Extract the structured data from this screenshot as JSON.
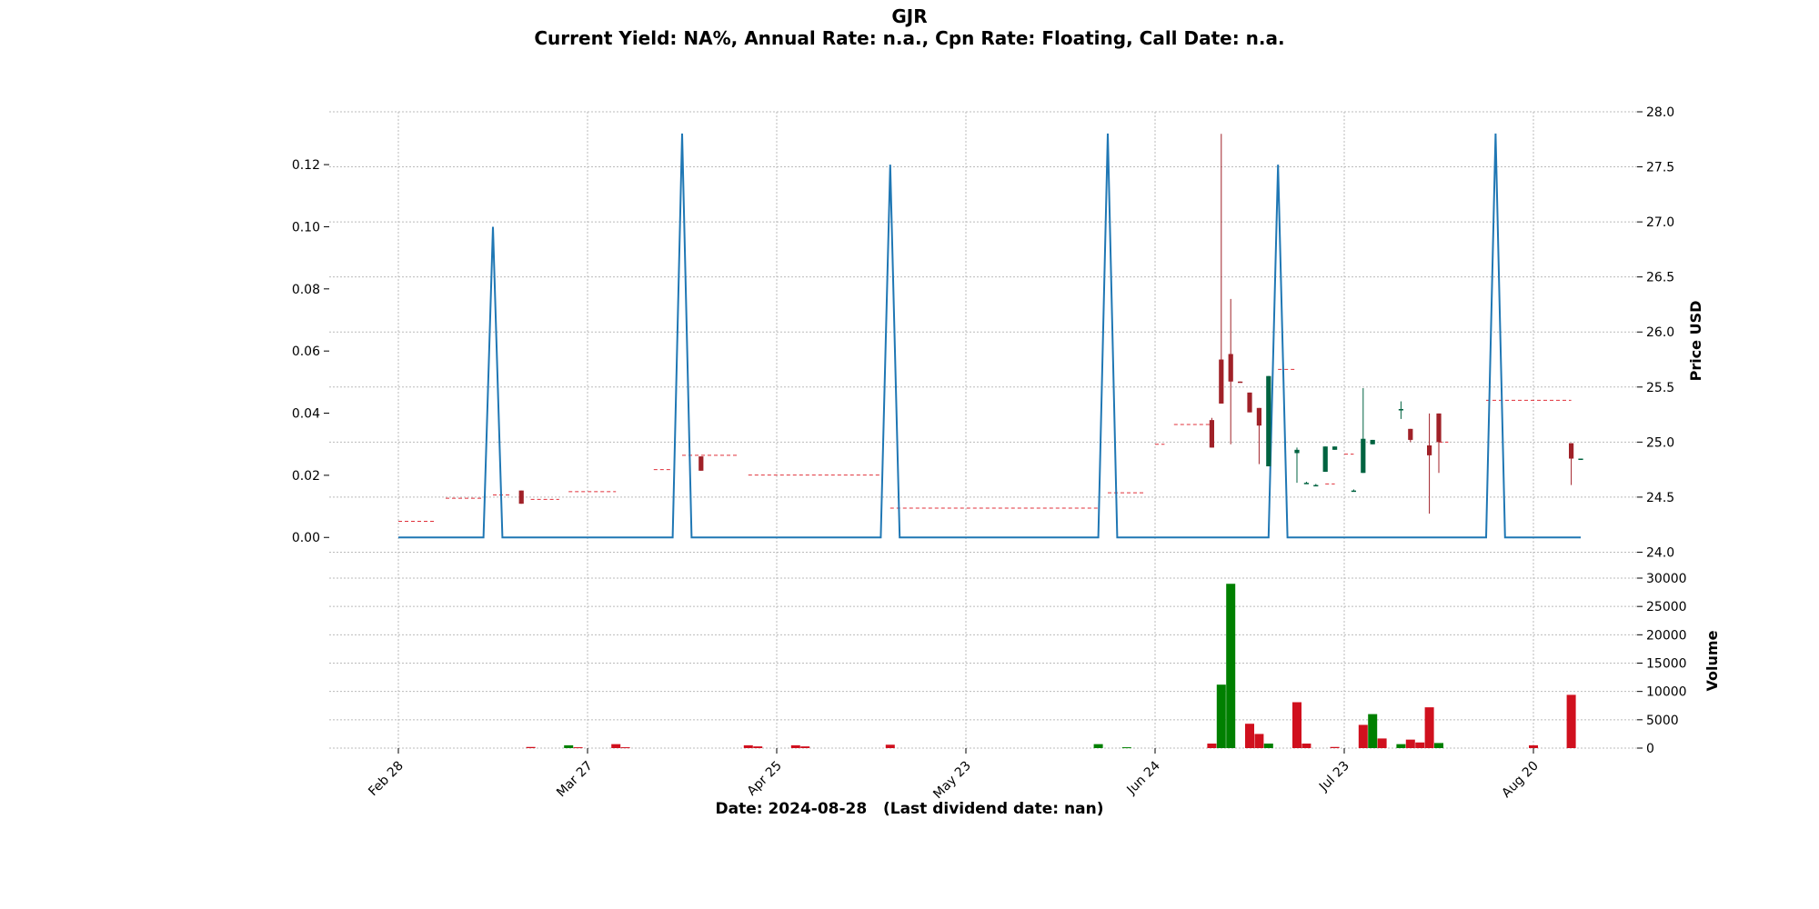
{
  "title": "GJR",
  "subtitle": "Current Yield: NA%, Annual Rate: n.a., Cpn Rate: Floating, Call Date: n.a.",
  "xlabel": "Date: 2024-08-28   (Last dividend date: nan)",
  "colors": {
    "line": "#1f77b4",
    "up": "#006340",
    "down": "#a02128",
    "dash": "#e0303a",
    "vol_up": "#008000",
    "vol_down": "#d0101e",
    "grid": "#bbbbbb"
  },
  "chart_data": {
    "type": "candlestick_with_volume",
    "x_ticks": [
      "Feb 28",
      "Mar 27",
      "Apr 25",
      "May 23",
      "Jun 24",
      "Jul 23",
      "Aug 20"
    ],
    "x_tick_index": [
      0,
      20,
      40,
      60,
      80,
      100,
      120
    ],
    "left_axis": {
      "ylim": [
        -0.009,
        0.137
      ],
      "ticks": [
        0.0,
        0.02,
        0.04,
        0.06,
        0.08,
        0.1,
        0.12
      ],
      "tick_labels": [
        "0.00",
        "0.02",
        "0.04",
        "0.06",
        "0.08",
        "0.10",
        "0.12"
      ]
    },
    "right_axis": {
      "label": "Price USD",
      "ylim": [
        23.88,
        28.0
      ],
      "ticks": [
        24.0,
        24.5,
        25.0,
        25.5,
        26.0,
        26.5,
        27.0,
        27.5,
        28.0
      ],
      "tick_labels": [
        "24.0",
        "24.5",
        "25.0",
        "25.5",
        "26.0",
        "26.5",
        "27.0",
        "27.5",
        "28.0"
      ]
    },
    "volume_axis": {
      "label": "Volume",
      "ylim": [
        0,
        30000
      ],
      "ticks": [
        0,
        5000,
        10000,
        15000,
        20000,
        25000,
        30000
      ],
      "tick_labels": [
        "0",
        "5000",
        "10000",
        "15000",
        "20000",
        "25000",
        "30000"
      ]
    },
    "yield_line": {
      "x": [
        0,
        9,
        10,
        11,
        29,
        30,
        31,
        51,
        52,
        53,
        74,
        75,
        76,
        92,
        93,
        94,
        115,
        116,
        117,
        125
      ],
      "y": [
        0,
        0,
        0.1,
        0,
        0,
        0.13,
        0,
        0,
        0.12,
        0,
        0,
        0.13,
        0,
        0,
        0.12,
        0,
        0,
        0.13,
        0,
        0
      ]
    },
    "dashed_levels": [
      {
        "x0": 0,
        "x1": 4,
        "price": 24.28
      },
      {
        "x0": 5,
        "x1": 9,
        "price": 24.49
      },
      {
        "x0": 10,
        "x1": 12,
        "price": 24.52
      },
      {
        "x0": 14,
        "x1": 17,
        "price": 24.48
      },
      {
        "x0": 18,
        "x1": 23,
        "price": 24.55
      },
      {
        "x0": 27,
        "x1": 29,
        "price": 24.75
      },
      {
        "x0": 30,
        "x1": 36,
        "price": 24.88
      },
      {
        "x0": 37,
        "x1": 51,
        "price": 24.7
      },
      {
        "x0": 52,
        "x1": 74,
        "price": 24.4
      },
      {
        "x0": 75,
        "x1": 79,
        "price": 24.54
      },
      {
        "x0": 80,
        "x1": 81,
        "price": 24.98
      },
      {
        "x0": 82,
        "x1": 86,
        "price": 25.16
      },
      {
        "x0": 93,
        "x1": 95,
        "price": 25.66
      },
      {
        "x0": 98,
        "x1": 99,
        "price": 24.62
      },
      {
        "x0": 100,
        "x1": 101,
        "price": 24.89
      },
      {
        "x0": 110,
        "x1": 111,
        "price": 25.0
      },
      {
        "x0": 115,
        "x1": 124,
        "price": 25.38
      }
    ],
    "candles": [
      {
        "i": 13,
        "open": 24.56,
        "high": 24.56,
        "low": 24.44,
        "close": 24.44
      },
      {
        "i": 32,
        "open": 24.87,
        "high": 24.87,
        "low": 24.74,
        "close": 24.74
      },
      {
        "i": 86,
        "open": 25.2,
        "high": 25.22,
        "low": 24.95,
        "close": 24.95
      },
      {
        "i": 87,
        "open": 25.75,
        "high": 27.8,
        "low": 25.35,
        "close": 25.35
      },
      {
        "i": 88,
        "open": 25.8,
        "high": 26.3,
        "low": 24.98,
        "close": 25.55
      },
      {
        "i": 89,
        "open": 25.55,
        "high": 25.55,
        "low": 25.54,
        "close": 25.54
      },
      {
        "i": 90,
        "open": 25.45,
        "high": 25.45,
        "low": 25.27,
        "close": 25.27
      },
      {
        "i": 91,
        "open": 25.31,
        "high": 25.31,
        "low": 24.8,
        "close": 25.15
      },
      {
        "i": 92,
        "open": 24.78,
        "high": 25.6,
        "low": 24.78,
        "close": 25.6
      },
      {
        "i": 95,
        "open": 24.9,
        "high": 24.95,
        "low": 24.63,
        "close": 24.93
      },
      {
        "i": 96,
        "open": 24.63,
        "high": 24.64,
        "low": 24.62,
        "close": 24.63
      },
      {
        "i": 97,
        "open": 24.61,
        "high": 24.62,
        "low": 24.6,
        "close": 24.61
      },
      {
        "i": 98,
        "open": 24.73,
        "high": 24.96,
        "low": 24.73,
        "close": 24.96
      },
      {
        "i": 99,
        "open": 24.93,
        "high": 24.96,
        "low": 24.93,
        "close": 24.96
      },
      {
        "i": 101,
        "open": 24.56,
        "high": 24.57,
        "low": 24.55,
        "close": 24.56
      },
      {
        "i": 102,
        "open": 24.72,
        "high": 25.49,
        "low": 24.72,
        "close": 25.03
      },
      {
        "i": 103,
        "open": 24.98,
        "high": 25.02,
        "low": 24.98,
        "close": 25.02
      },
      {
        "i": 106,
        "open": 25.3,
        "high": 25.37,
        "low": 25.21,
        "close": 25.3
      },
      {
        "i": 107,
        "open": 25.12,
        "high": 25.12,
        "low": 25.0,
        "close": 25.02
      },
      {
        "i": 109,
        "open": 24.97,
        "high": 25.26,
        "low": 24.35,
        "close": 24.88
      },
      {
        "i": 110,
        "open": 25.26,
        "high": 25.26,
        "low": 24.72,
        "close": 25.0
      },
      {
        "i": 124,
        "open": 24.99,
        "high": 24.99,
        "low": 24.61,
        "close": 24.85
      },
      {
        "i": 125,
        "open": 24.85,
        "high": 24.85,
        "low": 24.85,
        "close": 24.85
      }
    ],
    "volume": [
      {
        "i": 14,
        "v": 200,
        "up": false
      },
      {
        "i": 18,
        "v": 500,
        "up": true
      },
      {
        "i": 19,
        "v": 150,
        "up": false
      },
      {
        "i": 23,
        "v": 700,
        "up": false
      },
      {
        "i": 24,
        "v": 150,
        "up": false
      },
      {
        "i": 37,
        "v": 500,
        "up": false
      },
      {
        "i": 38,
        "v": 300,
        "up": false
      },
      {
        "i": 42,
        "v": 500,
        "up": false
      },
      {
        "i": 43,
        "v": 300,
        "up": false
      },
      {
        "i": 52,
        "v": 600,
        "up": false
      },
      {
        "i": 74,
        "v": 700,
        "up": true
      },
      {
        "i": 77,
        "v": 150,
        "up": true
      },
      {
        "i": 86,
        "v": 800,
        "up": false
      },
      {
        "i": 87,
        "v": 11200,
        "up": true
      },
      {
        "i": 88,
        "v": 29000,
        "up": true
      },
      {
        "i": 90,
        "v": 4300,
        "up": false
      },
      {
        "i": 91,
        "v": 2500,
        "up": false
      },
      {
        "i": 92,
        "v": 800,
        "up": true
      },
      {
        "i": 95,
        "v": 8100,
        "up": false
      },
      {
        "i": 96,
        "v": 800,
        "up": false
      },
      {
        "i": 99,
        "v": 200,
        "up": false
      },
      {
        "i": 102,
        "v": 4100,
        "up": false
      },
      {
        "i": 103,
        "v": 6000,
        "up": true
      },
      {
        "i": 104,
        "v": 1700,
        "up": false
      },
      {
        "i": 106,
        "v": 700,
        "up": true
      },
      {
        "i": 107,
        "v": 1500,
        "up": false
      },
      {
        "i": 108,
        "v": 1000,
        "up": false
      },
      {
        "i": 109,
        "v": 7200,
        "up": false
      },
      {
        "i": 110,
        "v": 900,
        "up": true
      },
      {
        "i": 120,
        "v": 500,
        "up": false
      },
      {
        "i": 124,
        "v": 9400,
        "up": false
      }
    ]
  }
}
